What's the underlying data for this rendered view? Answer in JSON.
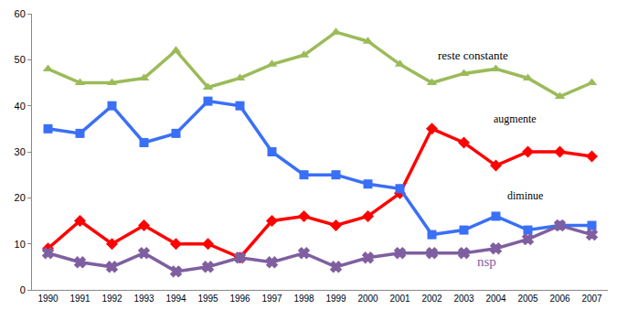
{
  "chart_data": {
    "type": "line",
    "categories": [
      "1990",
      "1991",
      "1992",
      "1993",
      "1994",
      "1995",
      "1996",
      "1997",
      "1998",
      "1999",
      "2000",
      "2001",
      "2002",
      "2003",
      "2004",
      "2005",
      "2006",
      "2007"
    ],
    "series": [
      {
        "name": "reste constante",
        "color": "#9bbb59",
        "marker": "triangle-up",
        "values": [
          48,
          45,
          45,
          46,
          52,
          44,
          46,
          49,
          51,
          56,
          54,
          49,
          45,
          47,
          48,
          46,
          42,
          45
        ]
      },
      {
        "name": "augmente",
        "color": "#ff0000",
        "marker": "diamond",
        "values": [
          9,
          15,
          10,
          14,
          10,
          10,
          7,
          15,
          16,
          14,
          16,
          21,
          35,
          32,
          27,
          30,
          30,
          29
        ]
      },
      {
        "name": "diminue",
        "color": "#3a6ff7",
        "marker": "square",
        "values": [
          35,
          34,
          40,
          32,
          34,
          41,
          40,
          30,
          25,
          25,
          23,
          22,
          12,
          13,
          16,
          13,
          14,
          14
        ]
      },
      {
        "name": "nsp",
        "color": "#7f5fa0",
        "marker": "x",
        "values": [
          8,
          6,
          5,
          8,
          4,
          5,
          7,
          6,
          8,
          5,
          7,
          8,
          8,
          8,
          9,
          11,
          14,
          12
        ]
      }
    ],
    "ylim": [
      0,
      60
    ],
    "yticks": [
      0,
      10,
      20,
      30,
      40,
      50,
      60
    ],
    "grid": false
  }
}
